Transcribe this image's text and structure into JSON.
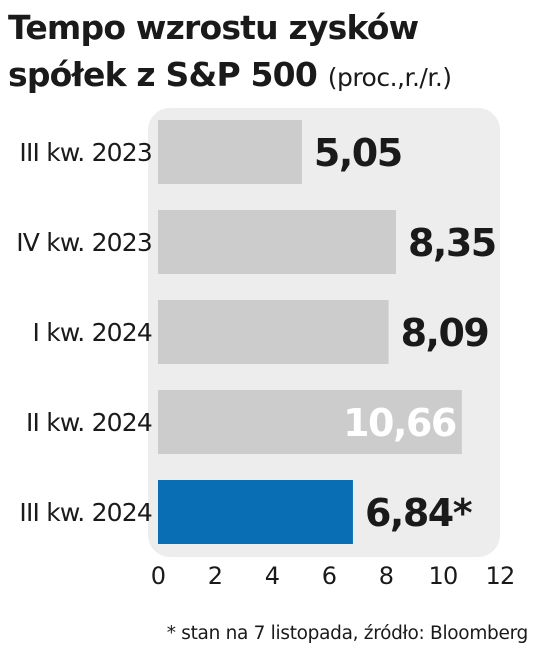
{
  "title_line1": "Tempo wzrostu zysków",
  "title_line2": "spółek z S&P 500",
  "unit": "(proc.,r./r.)",
  "footnote": "* stan na 7 listopada, źródło: Bloomberg",
  "colors": {
    "bar": "#cccccc",
    "bar_highlight": "#0a6eb4",
    "panel": "#ededed",
    "label_dark": "#1a1a1a",
    "label_light": "#ffffff"
  },
  "chart_data": {
    "type": "bar",
    "orientation": "horizontal",
    "categories": [
      "III kw. 2023",
      "IV kw. 2023",
      "I kw. 2024",
      "II kw. 2024",
      "III kw. 2024"
    ],
    "values": [
      5.05,
      8.35,
      8.09,
      10.66,
      6.84
    ],
    "value_labels": [
      "5,05",
      "8,35",
      "8,09",
      "10,66",
      "6,84*"
    ],
    "highlight_index": 4,
    "inside_label_index": 3,
    "xlim": [
      0,
      12
    ],
    "xticks": [
      0,
      2,
      4,
      6,
      8,
      10,
      12
    ],
    "grid": false
  }
}
